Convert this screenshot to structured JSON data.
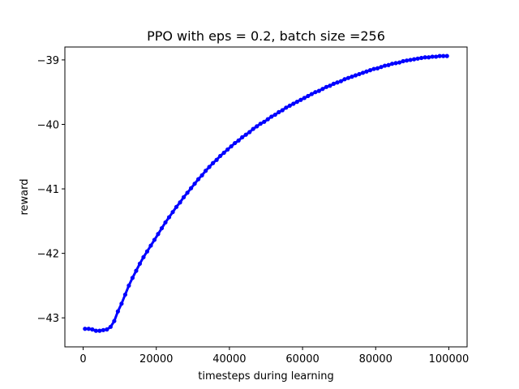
{
  "chart_data": {
    "type": "scatter",
    "title": "PPO with eps = 0.2, batch size =256",
    "xlabel": "timesteps during learning",
    "ylabel": "reward",
    "xlim": [
      -5000,
      105000
    ],
    "ylim": [
      -43.45,
      -38.8
    ],
    "xticks": [
      0,
      20000,
      40000,
      60000,
      80000,
      100000
    ],
    "yticks": [
      -43,
      -42,
      -41,
      -40,
      -39
    ],
    "ytick_labels": [
      "−43",
      "−42",
      "−41",
      "−40",
      "−39"
    ],
    "grid": false,
    "series": [
      {
        "color": "#0000ff",
        "x": [
          500,
          1500,
          2500,
          3500,
          4500,
          5500,
          6500,
          7500,
          8500,
          9500,
          10500,
          11500,
          12500,
          13500,
          14500,
          15500,
          16500,
          17500,
          18500,
          19500,
          20500,
          21500,
          22500,
          23500,
          24500,
          25500,
          26500,
          27500,
          28500,
          29500,
          30500,
          31500,
          32500,
          33500,
          34500,
          35500,
          36500,
          37500,
          38500,
          39500,
          40500,
          41500,
          42500,
          43500,
          44500,
          45500,
          46500,
          47500,
          48500,
          49500,
          50500,
          51500,
          52500,
          53500,
          54500,
          55500,
          56500,
          57500,
          58500,
          59500,
          60500,
          61500,
          62500,
          63500,
          64500,
          65500,
          66500,
          67500,
          68500,
          69500,
          70500,
          71500,
          72500,
          73500,
          74500,
          75500,
          76500,
          77500,
          78500,
          79500,
          80500,
          81500,
          82500,
          83500,
          84500,
          85500,
          86500,
          87500,
          88500,
          89500,
          90500,
          91500,
          92500,
          93500,
          94500,
          95500,
          96500,
          97500,
          98500,
          99500
        ],
        "values": [
          -43.17,
          -43.17,
          -43.18,
          -43.2,
          -43.2,
          -43.19,
          -43.18,
          -43.14,
          -43.05,
          -42.9,
          -42.78,
          -42.64,
          -42.5,
          -42.38,
          -42.27,
          -42.16,
          -42.06,
          -41.97,
          -41.88,
          -41.79,
          -41.7,
          -41.61,
          -41.52,
          -41.44,
          -41.36,
          -41.28,
          -41.21,
          -41.13,
          -41.06,
          -40.99,
          -40.92,
          -40.85,
          -40.79,
          -40.72,
          -40.66,
          -40.6,
          -40.55,
          -40.49,
          -40.44,
          -40.39,
          -40.34,
          -40.29,
          -40.25,
          -40.2,
          -40.16,
          -40.12,
          -40.07,
          -40.03,
          -39.99,
          -39.96,
          -39.92,
          -39.88,
          -39.85,
          -39.81,
          -39.78,
          -39.74,
          -39.71,
          -39.68,
          -39.65,
          -39.62,
          -39.59,
          -39.56,
          -39.53,
          -39.5,
          -39.48,
          -39.45,
          -39.42,
          -39.4,
          -39.37,
          -39.35,
          -39.33,
          -39.3,
          -39.28,
          -39.26,
          -39.24,
          -39.22,
          -39.2,
          -39.18,
          -39.16,
          -39.14,
          -39.13,
          -39.11,
          -39.09,
          -39.08,
          -39.06,
          -39.05,
          -39.04,
          -39.02,
          -39.01,
          -39.0,
          -38.99,
          -38.98,
          -38.97,
          -38.96,
          -38.96,
          -38.95,
          -38.95,
          -38.94,
          -38.94,
          -38.94
        ]
      }
    ]
  }
}
